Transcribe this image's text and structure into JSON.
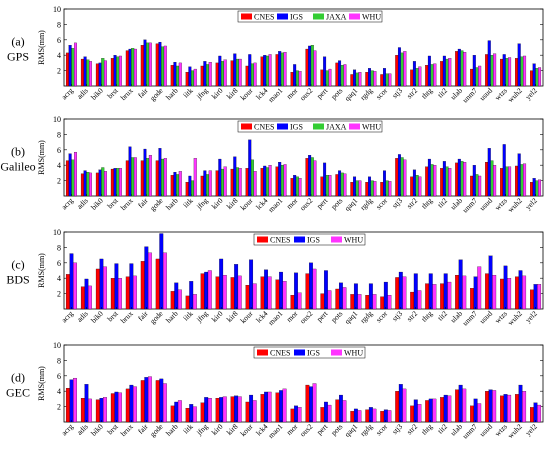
{
  "stations": [
    "acrg",
    "adis",
    "bik0",
    "brst",
    "brux",
    "fair",
    "gode",
    "harb",
    "iitk",
    "jfng",
    "kir0",
    "kir8",
    "kour",
    "lck4",
    "mao1",
    "mor",
    "ous2",
    "pert",
    "pots",
    "qaq1",
    "rgdg",
    "scor",
    "stj3",
    "str2",
    "thtg",
    "tit2",
    "ulab",
    "unm7",
    "usud",
    "wtzs",
    "wuh2",
    "yel2"
  ],
  "panels": [
    {
      "label": "(a)",
      "system": "GPS",
      "ylabel": "RMS(mm)",
      "ylim": [
        0,
        10
      ],
      "yticks": [
        2,
        4,
        6,
        8,
        10
      ],
      "series": [
        {
          "name": "CNES",
          "color": "#ff0000",
          "values": [
            4.3,
            3.5,
            2.9,
            3.6,
            4.6,
            5.3,
            5.5,
            2.7,
            1.8,
            2.6,
            3.0,
            3.3,
            2.6,
            3.8,
            4.1,
            1.8,
            4.8,
            2.1,
            3.0,
            1.5,
            1.8,
            1.5,
            4.0,
            2.1,
            2.7,
            3.2,
            4.5,
            2.2,
            4.1,
            3.5,
            3.6,
            2.0
          ]
        },
        {
          "name": "IGS",
          "color": "#0000ff",
          "values": [
            5.3,
            3.8,
            3.0,
            4.0,
            4.8,
            6.0,
            5.7,
            3.1,
            2.5,
            3.2,
            3.9,
            4.2,
            4.1,
            4.0,
            4.5,
            2.8,
            5.2,
            3.8,
            3.3,
            2.1,
            2.3,
            2.3,
            5.0,
            3.2,
            3.9,
            3.9,
            4.8,
            4.0,
            5.9,
            4.1,
            5.5,
            2.9
          ]
        },
        {
          "name": "JAXA",
          "color": "#33cc33",
          "values": [
            4.9,
            3.4,
            3.6,
            3.8,
            4.9,
            5.6,
            5.1,
            2.6,
            2.0,
            2.8,
            3.2,
            3.5,
            2.9,
            3.9,
            4.3,
            2.0,
            5.3,
            2.0,
            2.7,
            1.7,
            2.0,
            1.6,
            4.3,
            2.3,
            2.8,
            3.5,
            4.6,
            2.4,
            4.0,
            3.6,
            3.8,
            2.3
          ]
        },
        {
          "name": "WHU",
          "color": "#ff33ff",
          "values": [
            5.6,
            3.2,
            3.3,
            3.9,
            4.8,
            5.6,
            5.2,
            3.0,
            2.2,
            3.1,
            3.4,
            3.5,
            3.0,
            4.1,
            4.4,
            1.9,
            4.6,
            2.2,
            2.8,
            1.8,
            1.9,
            1.6,
            4.5,
            2.5,
            2.9,
            3.6,
            4.4,
            2.6,
            4.2,
            3.7,
            3.9,
            2.4
          ]
        }
      ]
    },
    {
      "label": "(b)",
      "system": "Galileo",
      "ylabel": "RMS(mm)",
      "ylim": [
        0,
        10
      ],
      "yticks": [
        2,
        4,
        6,
        8,
        10
      ],
      "series": [
        {
          "name": "CNES",
          "color": "#ff0000",
          "values": [
            4.6,
            2.9,
            3.0,
            3.5,
            4.6,
            4.6,
            4.6,
            2.7,
            1.8,
            2.6,
            3.3,
            3.5,
            3.6,
            3.6,
            3.8,
            2.3,
            4.9,
            2.5,
            2.8,
            1.8,
            1.8,
            1.8,
            4.9,
            2.5,
            3.8,
            3.6,
            4.3,
            2.6,
            4.4,
            3.6,
            3.9,
            1.8
          ]
        },
        {
          "name": "IGS",
          "color": "#0000ff",
          "values": [
            5.5,
            3.3,
            3.4,
            3.6,
            6.4,
            6.1,
            6.2,
            3.1,
            2.6,
            3.3,
            4.8,
            5.1,
            7.3,
            3.9,
            4.4,
            2.7,
            5.3,
            4.3,
            3.3,
            2.5,
            2.5,
            3.3,
            5.4,
            3.4,
            4.8,
            4.5,
            4.8,
            4.0,
            6.2,
            6.7,
            5.5,
            2.3
          ]
        },
        {
          "name": "JAXA",
          "color": "#33cc33",
          "values": [
            4.7,
            3.1,
            3.7,
            3.6,
            5.0,
            4.9,
            4.8,
            2.8,
            2.0,
            2.8,
            3.5,
            3.7,
            4.7,
            3.7,
            4.0,
            2.5,
            5.0,
            2.7,
            3.0,
            2.0,
            2.0,
            2.0,
            5.0,
            2.7,
            4.1,
            3.8,
            4.5,
            2.8,
            4.6,
            3.8,
            4.1,
            2.0
          ]
        },
        {
          "name": "WHU",
          "color": "#ff33ff",
          "values": [
            5.7,
            3.0,
            3.2,
            3.6,
            5.0,
            5.3,
            4.9,
            3.2,
            4.9,
            3.3,
            3.8,
            3.6,
            3.2,
            4.0,
            4.1,
            2.3,
            4.6,
            2.7,
            2.9,
            2.0,
            1.9,
            1.9,
            4.7,
            2.5,
            4.0,
            3.6,
            4.4,
            2.6,
            4.0,
            3.8,
            4.2,
            2.1
          ]
        }
      ]
    },
    {
      "label": "(c)",
      "system": "BDS",
      "ylabel": "RMS(mm)",
      "ylim": [
        0,
        10
      ],
      "yticks": [
        2,
        4,
        6,
        8,
        10
      ],
      "series": [
        {
          "name": "CNES",
          "color": "#ff0000",
          "values": [
            4.5,
            2.9,
            5.2,
            4.0,
            4.2,
            6.2,
            6.5,
            2.3,
            1.7,
            4.6,
            4.2,
            4.1,
            3.1,
            4.2,
            3.8,
            1.8,
            4.6,
            2.0,
            2.6,
            1.9,
            1.8,
            1.6,
            4.1,
            2.2,
            3.3,
            3.3,
            4.4,
            2.7,
            4.6,
            3.9,
            4.2,
            2.5
          ]
        },
        {
          "name": "IGS",
          "color": "#0000ff",
          "values": [
            7.2,
            3.9,
            6.5,
            5.9,
            5.9,
            8.1,
            9.8,
            3.4,
            3.6,
            4.8,
            6.5,
            5.8,
            6.4,
            5.1,
            4.8,
            4.7,
            6.0,
            5.0,
            3.4,
            3.3,
            3.3,
            3.5,
            4.8,
            4.6,
            4.6,
            4.6,
            6.4,
            4.2,
            6.9,
            5.6,
            5.0,
            3.2
          ]
        },
        {
          "name": "WHU",
          "color": "#ff33ff",
          "values": [
            6.0,
            3.0,
            5.5,
            4.0,
            4.3,
            7.3,
            7.3,
            2.5,
            1.9,
            5.0,
            4.4,
            4.3,
            3.3,
            4.2,
            3.6,
            2.1,
            5.2,
            2.4,
            2.8,
            1.9,
            1.9,
            1.8,
            4.2,
            2.4,
            3.2,
            3.5,
            4.3,
            5.5,
            4.4,
            4.0,
            4.3,
            3.2
          ]
        }
      ]
    },
    {
      "label": "(d)",
      "system": "GEC",
      "ylabel": "RMS(mm)",
      "ylim": [
        0,
        10
      ],
      "yticks": [
        2,
        4,
        6,
        8,
        10
      ],
      "series": [
        {
          "name": "CNES",
          "color": "#ff0000",
          "values": [
            4.4,
            3.1,
            2.9,
            3.7,
            4.3,
            5.4,
            5.4,
            2.1,
            1.8,
            2.5,
            3.1,
            3.3,
            2.6,
            3.6,
            3.8,
            1.7,
            4.8,
            1.9,
            2.9,
            1.4,
            1.6,
            1.4,
            4.0,
            2.1,
            2.8,
            3.2,
            4.2,
            2.1,
            4.0,
            3.4,
            3.6,
            1.9
          ]
        },
        {
          "name": "IGS",
          "color": "#0000ff",
          "values": [
            5.5,
            4.9,
            3.1,
            3.9,
            4.8,
            5.8,
            5.6,
            2.6,
            2.3,
            3.2,
            3.2,
            3.4,
            3.5,
            3.9,
            4.1,
            2.1,
            4.6,
            2.6,
            3.5,
            1.7,
            1.9,
            1.6,
            4.9,
            2.9,
            3.0,
            3.5,
            4.8,
            3.0,
            4.2,
            3.6,
            4.8,
            2.5
          ]
        },
        {
          "name": "WHU",
          "color": "#ff33ff",
          "values": [
            5.7,
            3.0,
            3.2,
            3.8,
            4.6,
            5.9,
            5.0,
            2.8,
            2.0,
            3.1,
            3.3,
            3.3,
            2.8,
            3.9,
            4.3,
            1.9,
            5.0,
            2.2,
            2.8,
            1.5,
            1.7,
            1.5,
            4.3,
            2.3,
            3.0,
            3.4,
            4.3,
            2.4,
            4.1,
            3.5,
            4.0,
            2.2
          ]
        }
      ]
    }
  ]
}
